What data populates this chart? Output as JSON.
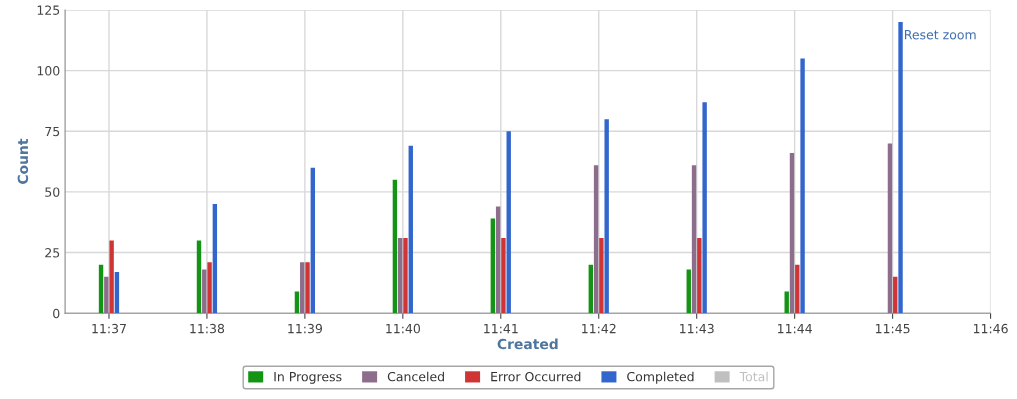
{
  "chart_data": {
    "type": "bar",
    "xlabel": "Created",
    "ylabel": "Count",
    "x": [
      11.616667,
      11.633333,
      11.65,
      11.666667,
      11.683333,
      11.7,
      11.716667,
      11.733333,
      11.75
    ],
    "series": [
      {
        "name": "In Progress",
        "color": "#149414",
        "values": [
          20,
          30,
          9,
          55,
          39,
          20,
          18,
          9,
          0
        ]
      },
      {
        "name": "Canceled",
        "color": "#8c6d8c",
        "values": [
          15,
          18,
          21,
          31,
          44,
          61,
          61,
          66,
          70
        ]
      },
      {
        "name": "Error Occurred",
        "color": "#d03535",
        "values": [
          30,
          21,
          21,
          31,
          31,
          31,
          31,
          20,
          15
        ]
      },
      {
        "name": "Completed",
        "color": "#3366cc",
        "values": [
          17,
          45,
          60,
          69,
          75,
          80,
          87,
          105,
          120
        ]
      },
      {
        "name": "Total",
        "color": "#c0c0c0",
        "values": [
          null,
          null,
          null,
          null,
          null,
          null,
          null,
          null,
          null
        ]
      }
    ],
    "xlim": [
      11.6092,
      11.766667
    ],
    "xticks": [
      {
        "value": 11.616667,
        "label": "11:37"
      },
      {
        "value": 11.633333,
        "label": "11:38"
      },
      {
        "value": 11.65,
        "label": "11:39"
      },
      {
        "value": 11.666667,
        "label": "11:40"
      },
      {
        "value": 11.683333,
        "label": "11:41"
      },
      {
        "value": 11.7,
        "label": "11:42"
      },
      {
        "value": 11.716667,
        "label": "11:43"
      },
      {
        "value": 11.733333,
        "label": "11:44"
      },
      {
        "value": 11.75,
        "label": "11:45"
      },
      {
        "value": 11.766667,
        "label": "11:46"
      }
    ],
    "ylim": [
      0,
      125
    ],
    "yticks": [
      0,
      25,
      50,
      75,
      100,
      125
    ],
    "grid": true,
    "legend": "bottom",
    "annotations": [
      "Reset zoom"
    ]
  }
}
